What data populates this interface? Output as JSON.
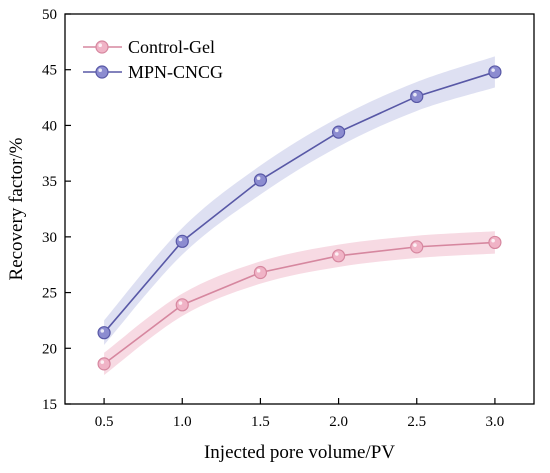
{
  "chart_data": {
    "type": "line",
    "xlabel": "Injected pore volume/PV",
    "ylabel": "Recovery factor/%",
    "xlim": [
      0.25,
      3.25
    ],
    "ylim": [
      15,
      50
    ],
    "x_ticks": [
      "0.5",
      "1.0",
      "1.5",
      "2.0",
      "2.5",
      "3.0"
    ],
    "y_ticks": [
      "15",
      "20",
      "25",
      "30",
      "35",
      "40",
      "45",
      "50"
    ],
    "x": [
      0.5,
      1.0,
      1.5,
      2.0,
      2.5,
      3.0
    ],
    "legend_position": "top-left",
    "grid": false,
    "series": [
      {
        "name": "Control-Gel",
        "values": [
          18.6,
          23.9,
          26.8,
          28.3,
          29.1,
          29.5
        ],
        "band": [
          1.0,
          1.0,
          1.0,
          1.0,
          1.0,
          1.0
        ],
        "color": "#d6879f",
        "marker_color": "#f0b3c6",
        "band_color": "#f4cdd9"
      },
      {
        "name": "MPN-CNCG",
        "values": [
          21.4,
          29.6,
          35.1,
          39.4,
          42.6,
          44.8
        ],
        "band": [
          1.1,
          1.2,
          1.3,
          1.3,
          1.3,
          1.4
        ],
        "color": "#5858a6",
        "marker_color": "#8c8cd0",
        "band_color": "#d3d5ee"
      }
    ]
  }
}
